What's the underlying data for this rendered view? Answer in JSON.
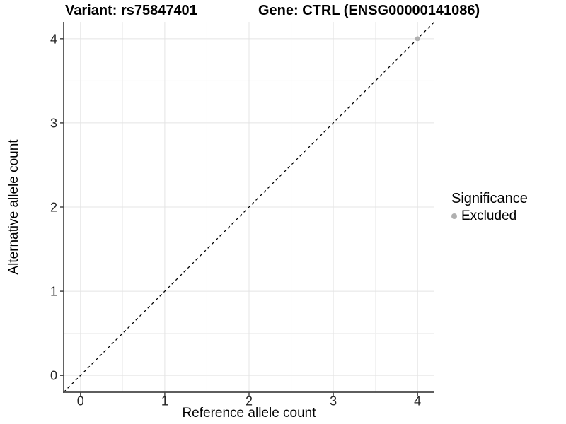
{
  "chart_data": {
    "type": "scatter",
    "title_variant": "Variant: rs75847401",
    "title_gene": "Gene: CTRL (ENSG00000141086)",
    "xlabel": "Reference allele count",
    "ylabel": "Alternative allele count",
    "xlim": [
      -0.2,
      4.2
    ],
    "ylim": [
      -0.2,
      4.2
    ],
    "xticks": [
      0,
      1,
      2,
      3,
      4
    ],
    "yticks": [
      0,
      1,
      2,
      3,
      4
    ],
    "xticks_minor": [
      0.5,
      1.5,
      2.5,
      3.5
    ],
    "yticks_minor": [
      0.5,
      1.5,
      2.5,
      3.5
    ],
    "grid": "major and minor gridlines on, white panel background",
    "identity_line": {
      "type": "y=x",
      "style": "dashed",
      "color": "#000000",
      "from": [
        -0.2,
        -0.2
      ],
      "to": [
        4.2,
        4.2
      ]
    },
    "series": [
      {
        "name": "Excluded",
        "color": "#b0b0b0",
        "marker": "circle",
        "points": [
          {
            "x": 4,
            "y": 4
          }
        ]
      }
    ],
    "legend": {
      "title": "Significance",
      "position": "right",
      "items": [
        {
          "label": "Excluded",
          "color": "#b0b0b0"
        }
      ]
    }
  },
  "colors": {
    "background": "#ffffff",
    "grid_major": "#e4e4e4",
    "grid_minor": "#f0f0f0",
    "axis_line": "#474747",
    "tick_mark": "#474747",
    "tick_label": "#262626",
    "text": "#000000",
    "dashed_line": "#000000",
    "excluded_point": "#b0b0b0"
  }
}
